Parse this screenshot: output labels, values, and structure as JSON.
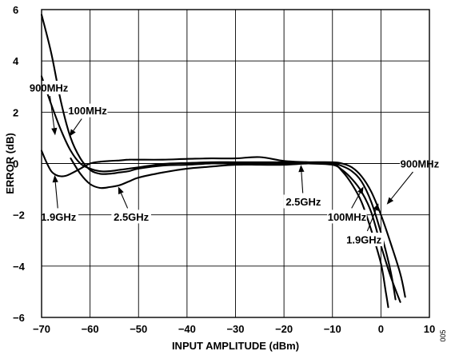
{
  "chart_data": {
    "type": "line",
    "xlabel": "INPUT AMPLITUDE (dBm)",
    "ylabel": "ERROR (dB)",
    "xlim": [
      -70,
      10
    ],
    "ylim": [
      -6,
      6
    ],
    "xticks": [
      -70,
      -60,
      -50,
      -40,
      -30,
      -20,
      -10,
      0,
      10
    ],
    "xtick_labels": [
      "−70",
      "−60",
      "−50",
      "−40",
      "−30",
      "−20",
      "−10",
      "0",
      "10"
    ],
    "yticks": [
      -6,
      -4,
      -2,
      0,
      2,
      4,
      6
    ],
    "ytick_labels": [
      "−6",
      "−4",
      "−2",
      "0",
      "2",
      "4",
      "6"
    ],
    "grid": true,
    "figure_id": "005",
    "series": [
      {
        "name": "100MHz",
        "x": [
          -70,
          -68,
          -66,
          -64,
          -62,
          -60,
          -58,
          -56,
          -54,
          -52,
          -50,
          -45,
          -40,
          -35,
          -30,
          -25,
          -20,
          -15,
          -10,
          -8,
          -6,
          -4,
          -2,
          0,
          2,
          4
        ],
        "y": [
          5.8,
          4.3,
          2.4,
          1.0,
          0.2,
          -0.25,
          -0.4,
          -0.4,
          -0.35,
          -0.3,
          -0.2,
          -0.08,
          -0.05,
          0.0,
          0.0,
          0.02,
          0.0,
          0.0,
          -0.05,
          -0.25,
          -0.6,
          -1.1,
          -1.9,
          -3.2,
          -4.4,
          -5.4
        ]
      },
      {
        "name": "900MHz",
        "x": [
          -70,
          -68,
          -66,
          -64,
          -62,
          -60,
          -58,
          -56,
          -54,
          -52,
          -50,
          -45,
          -40,
          -35,
          -30,
          -25,
          -20,
          -15,
          -10,
          -8,
          -6,
          -4,
          -2,
          0,
          2,
          4,
          5
        ],
        "y": [
          3.4,
          2.3,
          1.3,
          0.5,
          0.0,
          -0.2,
          -0.3,
          -0.3,
          -0.25,
          -0.2,
          -0.15,
          -0.02,
          0.02,
          0.05,
          0.05,
          0.05,
          0.05,
          0.05,
          0.05,
          0.0,
          -0.15,
          -0.5,
          -1.1,
          -2.0,
          -3.1,
          -4.3,
          -5.2
        ]
      },
      {
        "name": "1.9GHz",
        "x": [
          -70,
          -69,
          -68,
          -67,
          -66,
          -65,
          -64,
          -62,
          -60,
          -58,
          -56,
          -54,
          -52,
          -50,
          -45,
          -40,
          -35,
          -30,
          -25,
          -20,
          -15,
          -10,
          -8,
          -6,
          -4,
          -2,
          0,
          1,
          1.5
        ],
        "y": [
          0.5,
          0.05,
          -0.3,
          -0.45,
          -0.5,
          -0.48,
          -0.4,
          -0.2,
          0.0,
          0.07,
          0.1,
          0.12,
          0.15,
          0.15,
          0.15,
          0.18,
          0.2,
          0.2,
          0.25,
          0.1,
          0.05,
          0.0,
          -0.3,
          -0.8,
          -1.5,
          -2.6,
          -3.9,
          -5.0,
          -5.6
        ]
      },
      {
        "name": "2.5GHz",
        "x": [
          -64,
          -62,
          -60,
          -58,
          -56,
          -54,
          -52,
          -50,
          -45,
          -40,
          -35,
          -30,
          -25,
          -20,
          -15,
          -10,
          -8,
          -6,
          -4,
          -2,
          0,
          2,
          3
        ],
        "y": [
          0.2,
          -0.4,
          -0.8,
          -0.95,
          -0.92,
          -0.85,
          -0.7,
          -0.55,
          -0.35,
          -0.2,
          -0.12,
          -0.05,
          -0.05,
          -0.05,
          0.0,
          0.0,
          -0.1,
          -0.3,
          -0.7,
          -1.5,
          -2.7,
          -4.2,
          -5.3
        ]
      }
    ],
    "annotations": [
      {
        "text": "900MHz",
        "tx": -68.5,
        "ty": 2.96,
        "ax": -67.2,
        "ay": 1.1
      },
      {
        "text": "100MHz",
        "tx": -60.5,
        "ty": 2.07,
        "ax": -64.3,
        "ay": 1.05
      },
      {
        "text": "1.9GHz",
        "tx": -66.5,
        "ty": -2.07,
        "ax": -67.3,
        "ay": -0.45
      },
      {
        "text": "2.5GHz",
        "tx": -51.5,
        "ty": -2.07,
        "ax": -54.2,
        "ay": -0.9
      },
      {
        "text": "2.5GHz",
        "tx": -16.0,
        "ty": -1.48,
        "ax": -16.5,
        "ay": -0.05
      },
      {
        "text": "900MHz",
        "tx": 8.0,
        "ty": 0.0,
        "ax": 1.2,
        "ay": -1.6
      },
      {
        "text": "100MHz",
        "tx": -7.0,
        "ty": -2.07,
        "ax": -3.6,
        "ay": -0.9
      },
      {
        "text": "1.9GHz",
        "tx": -3.5,
        "ty": -2.96,
        "ax": -0.5,
        "ay": -1.55
      }
    ]
  }
}
